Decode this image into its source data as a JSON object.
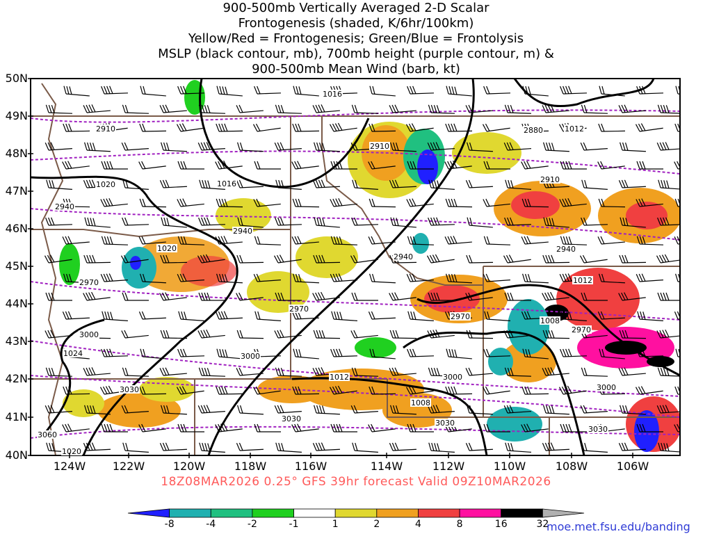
{
  "title_lines": [
    "900-500mb Vertically Averaged 2-D Scalar",
    "Frontogenesis (shaded, K/6hr/100km)",
    "Yellow/Red = Frontogenesis;  Green/Blue = Frontolysis",
    "MSLP (black contour, mb), 700mb height (purple contour, m) &",
    "900-500mb Mean Wind (barb, kt)"
  ],
  "lat_labels": [
    "50N",
    "49N",
    "48N",
    "47N",
    "46N",
    "45N",
    "44N",
    "43N",
    "42N",
    "41N",
    "40N"
  ],
  "lon_labels": [
    "124W",
    "122W",
    "120W",
    "118W",
    "116W",
    "114W",
    "112W",
    "110W",
    "108W",
    "106W"
  ],
  "footer": "18Z08MAR2026 0.25° GFS 39hr forecast Valid 09Z10MAR2026",
  "credit": "moe.met.fsu.edu/banding",
  "colorbar": {
    "ticks": [
      "-8",
      "-4",
      "-2",
      "-1",
      "1",
      "2",
      "4",
      "8",
      "16",
      "32"
    ],
    "colors": [
      "#2020ff",
      "#20b0b0",
      "#20c080",
      "#20d020",
      "#ffffff",
      "#e0d830",
      "#f0a020",
      "#f04040",
      "#ff10a0",
      "#000000",
      "#b0b0b0"
    ]
  },
  "mslp_labels": [
    "1016",
    "1020",
    "1016",
    "1012",
    "1020",
    "1024",
    "1012",
    "1008",
    "1012",
    "1008",
    "1020"
  ],
  "height_labels": [
    "2910",
    "2910",
    "2880",
    "2910",
    "2940",
    "2940",
    "2940",
    "2940",
    "2970",
    "2970",
    "2970",
    "2970",
    "3000",
    "3000",
    "3000",
    "3000",
    "3030",
    "3030",
    "3030",
    "3030",
    "3060"
  ],
  "colors": {
    "mslp": "#000000",
    "height": "#a020c0",
    "border": "#7a5a48",
    "frame": "#000000"
  }
}
